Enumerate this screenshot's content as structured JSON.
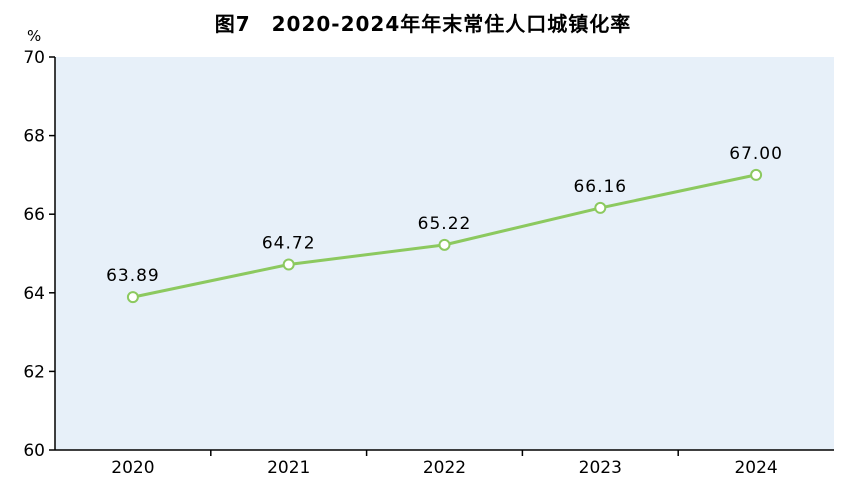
{
  "chart_data": {
    "type": "line",
    "title": "图7　2020-2024年年末常住人口城镇化率",
    "unit": "%",
    "categories": [
      "2020",
      "2021",
      "2022",
      "2023",
      "2024"
    ],
    "values": [
      63.89,
      64.72,
      65.22,
      66.16,
      67.0
    ],
    "point_labels": [
      "63.89",
      "64.72",
      "65.22",
      "66.16",
      "67.00"
    ],
    "ylim": [
      60,
      70
    ],
    "yticks": [
      60,
      62,
      64,
      66,
      68,
      70
    ],
    "xlabel": "",
    "ylabel": "%",
    "grid": "off",
    "legend": "none",
    "colors": {
      "line": "#8CC95F",
      "marker_fill": "#FFFFFF",
      "marker_stroke": "#8CC95F",
      "plot_background": "#E7F0F9",
      "axis": "#000000",
      "text": "#000000"
    }
  }
}
